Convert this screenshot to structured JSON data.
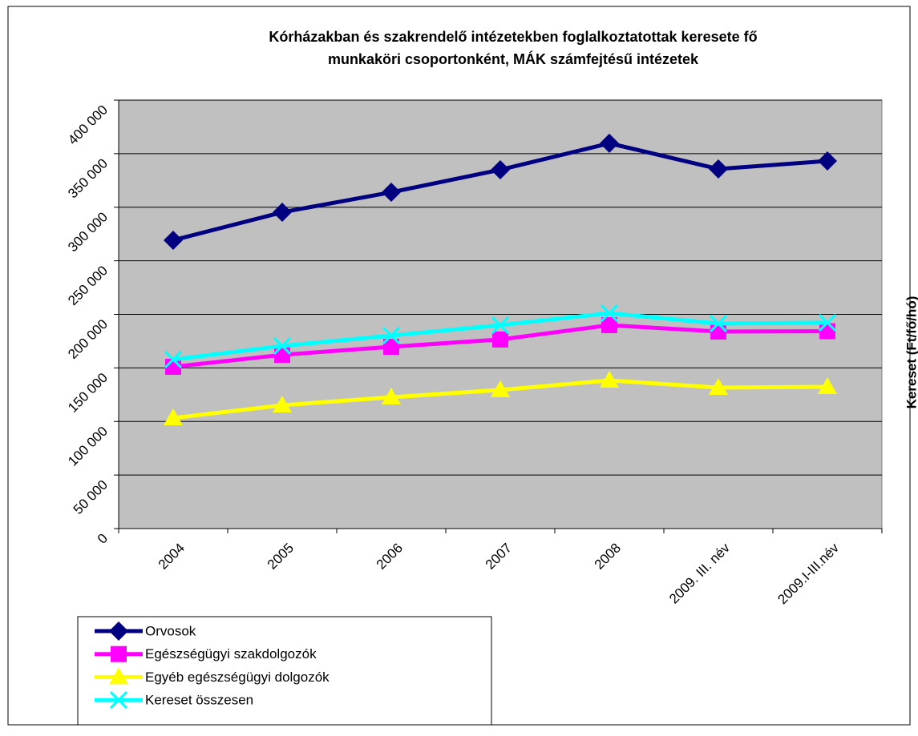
{
  "chart_data": {
    "type": "line",
    "title": [
      "Kórházakban és szakrendelő intézetekben foglalkoztatottak keresete fő",
      "munkaköri csoportonként, MÁK számfejtésű intézetek"
    ],
    "y_label": "Kereset (Ft/fő/hó)",
    "categories": [
      "2004",
      "2005",
      "2006",
      "2007",
      "2008",
      "2009. III. név",
      "2009.I-III.név"
    ],
    "series": [
      {
        "name": "Orvosok",
        "color": "#000080",
        "marker": "diamond",
        "values": [
          269200,
          295300,
          314000,
          335000,
          359700,
          335700,
          343200
        ]
      },
      {
        "name": "Egészségügyi szakdolgozók",
        "color": "#ff00ff",
        "marker": "square",
        "values": [
          151000,
          162200,
          169700,
          176500,
          189900,
          183900,
          184200
        ]
      },
      {
        "name": "Egyéb egészségügyi dolgozók",
        "color": "#ffff00",
        "marker": "triangle",
        "values": [
          103200,
          115100,
          122600,
          129400,
          138300,
          131600,
          132300
        ]
      },
      {
        "name": "Kereset összesen",
        "color": "#00ffff",
        "marker": "x",
        "values": [
          157800,
          170500,
          180200,
          189900,
          201100,
          191400,
          192200
        ]
      }
    ],
    "ylim": [
      0,
      400000
    ],
    "yticks": [
      {
        "value": 0,
        "label": "0"
      },
      {
        "value": 50000,
        "label": "50 000"
      },
      {
        "value": 100000,
        "label": "100 000"
      },
      {
        "value": 150000,
        "label": "150 000"
      },
      {
        "value": 200000,
        "label": "200 000"
      },
      {
        "value": 250000,
        "label": "250 000"
      },
      {
        "value": 300000,
        "label": "300 000"
      },
      {
        "value": 350000,
        "label": "350 000"
      },
      {
        "value": 400000,
        "label": "400 000"
      }
    ],
    "grid": true,
    "plot_background": "#c0c0c0",
    "legend": "bottom-left"
  }
}
